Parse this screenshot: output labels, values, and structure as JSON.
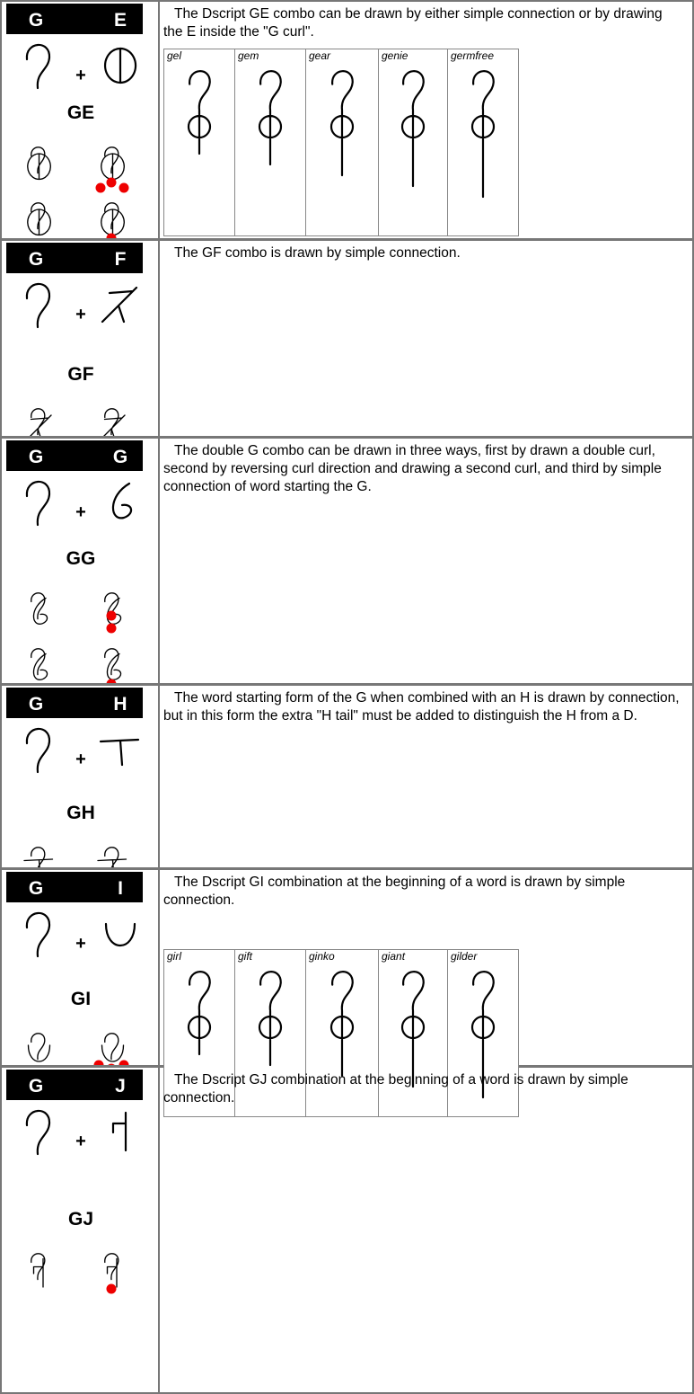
{
  "rows": [
    {
      "letters": [
        "G",
        "E"
      ],
      "combo": "GE",
      "text": "The Dscript GE combo can be drawn by either simple connection or by drawing the E inside the \"G curl\".",
      "examples": [
        "gel",
        "gem",
        "gear",
        "genie",
        "germfree"
      ]
    },
    {
      "letters": [
        "G",
        "F"
      ],
      "combo": "GF",
      "text": "The GF combo is drawn by simple connection."
    },
    {
      "letters": [
        "G",
        "G"
      ],
      "combo": "GG",
      "text": "The double G combo can be drawn in three ways, first by drawn a double curl, second by reversing curl direction and drawing a second curl, and third by simple connection of word starting the G."
    },
    {
      "letters": [
        "G",
        "H"
      ],
      "combo": "GH",
      "text": "The word starting form of the G when combined with an H is drawn by connection, but in this form the extra \"H tail\" must be added to distinguish the H from a D."
    },
    {
      "letters": [
        "G",
        "I"
      ],
      "combo": "GI",
      "text": "The Dscript GI combination at the beginning of a word is drawn by simple connection.",
      "examples": [
        "girl",
        "gift",
        "ginko",
        "giant",
        "gilder"
      ]
    },
    {
      "letters": [
        "G",
        "J"
      ],
      "combo": "GJ",
      "text": "The Dscript GJ combination at the beginning of a word is drawn by simple connection."
    }
  ]
}
